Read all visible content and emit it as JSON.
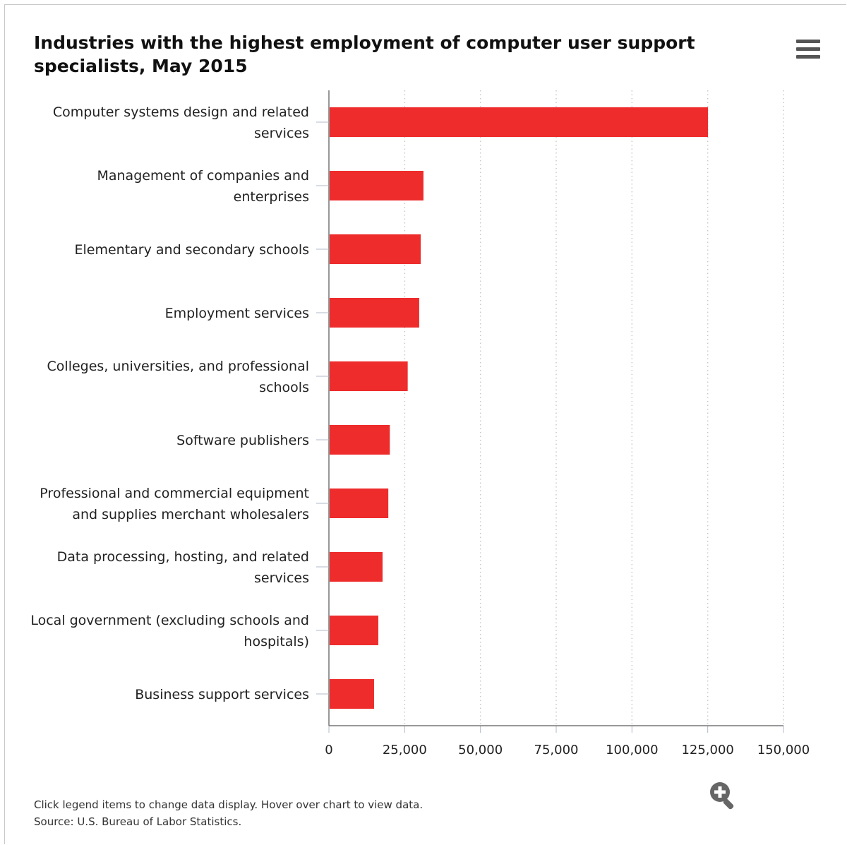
{
  "chart_data": {
    "type": "bar",
    "orientation": "horizontal",
    "title": "Industries with the highest employment of computer user support specialists, May 2015",
    "categories": [
      [
        "Computer systems design and related",
        "services"
      ],
      [
        "Management of companies and",
        "enterprises"
      ],
      [
        "Elementary and secondary schools"
      ],
      [
        "Employment services"
      ],
      [
        "Colleges, universities, and professional",
        "schools"
      ],
      [
        "Software publishers"
      ],
      [
        "Professional and commercial equipment",
        "and supplies merchant wholesalers"
      ],
      [
        "Data processing, hosting, and related",
        "services"
      ],
      [
        "Local government (excluding schools and",
        "hospitals)"
      ],
      [
        "Business support services"
      ]
    ],
    "values": [
      125100,
      31200,
      30300,
      29800,
      26000,
      20100,
      19600,
      17700,
      16300,
      14900
    ],
    "xlim": [
      0,
      150000
    ],
    "xticks": [
      0,
      25000,
      50000,
      75000,
      100000,
      125000,
      150000
    ],
    "xtick_labels": [
      "0",
      "25,000",
      "50,000",
      "75,000",
      "100,000",
      "125,000",
      "150,000"
    ],
    "xlabel": "",
    "ylabel": "",
    "grid": "vertical dotted",
    "bar_color": "#ee2c2c"
  },
  "footer": {
    "note": "Click legend items to change data display. Hover over chart to view data.",
    "source": "Source: U.S. Bureau of Labor Statistics."
  },
  "icons": {
    "menu": "menu-icon",
    "zoom": "zoom-in-icon"
  }
}
